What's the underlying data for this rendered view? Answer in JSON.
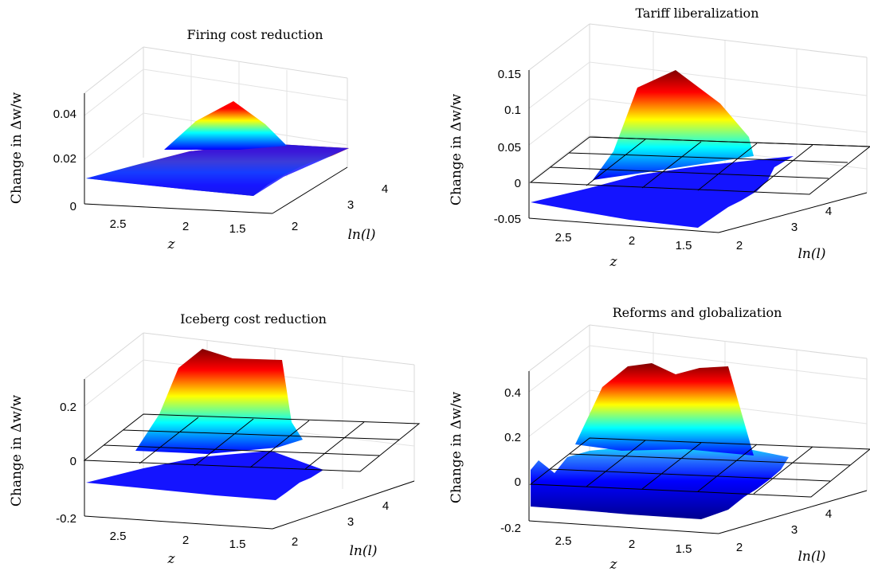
{
  "colormap": [
    "#00008f",
    "#0000ff",
    "#00ffff",
    "#ffff00",
    "#ff0000",
    "#800000"
  ],
  "chart_data": [
    {
      "type": "surface",
      "title": "Firing cost reduction",
      "zlabel": "Change in Δw/w",
      "xlabel": "z",
      "ylabel": "ln(l)",
      "xlim": [
        1.3,
        2.8
      ],
      "ylim": [
        2,
        4.6
      ],
      "zlim": [
        0,
        0.05
      ],
      "xticks": [
        "2.5",
        "2",
        "1.5"
      ],
      "yticks": [
        "2",
        "3",
        "4"
      ],
      "zticks": [
        "0",
        "0.02",
        "0.04"
      ],
      "zero_plane": false,
      "surface_peak": 0.045,
      "surface_floor": 0.008
    },
    {
      "type": "surface",
      "title": "Tariff liberalization",
      "zlabel": "Change in Δw/w",
      "xlabel": "z",
      "ylabel": "ln(l)",
      "xlim": [
        1.3,
        2.8
      ],
      "ylim": [
        2,
        4.6
      ],
      "zlim": [
        -0.05,
        0.15
      ],
      "xticks": [
        "2.5",
        "2",
        "1.5"
      ],
      "yticks": [
        "2",
        "3",
        "4"
      ],
      "zticks": [
        "-0.05",
        "0",
        "0.05",
        "0.1",
        "0.15"
      ],
      "zero_plane": true,
      "surface_peak": 0.155,
      "surface_floor": -0.03
    },
    {
      "type": "surface",
      "title": "Iceberg cost reduction",
      "zlabel": "Change in Δw/w",
      "xlabel": "z",
      "ylabel": "ln(l)",
      "xlim": [
        1.3,
        2.8
      ],
      "ylim": [
        2,
        4.6
      ],
      "zlim": [
        -0.2,
        0.3
      ],
      "xticks": [
        "2.5",
        "2",
        "1.5"
      ],
      "yticks": [
        "2",
        "3",
        "4"
      ],
      "zticks": [
        "-0.2",
        "0",
        "0.2"
      ],
      "zero_plane": true,
      "surface_peak": 0.3,
      "surface_floor": -0.09
    },
    {
      "type": "surface",
      "title": "Reforms and globalization",
      "zlabel": "Change in Δw/w",
      "xlabel": "z",
      "ylabel": "ln(l)",
      "xlim": [
        1.3,
        2.8
      ],
      "ylim": [
        2,
        4.6
      ],
      "zlim": [
        -0.2,
        0.5
      ],
      "xticks": [
        "2.5",
        "2",
        "1.5"
      ],
      "yticks": [
        "2",
        "3",
        "4"
      ],
      "zticks": [
        "-0.2",
        "0",
        "0.2",
        "0.4"
      ],
      "zero_plane": true,
      "surface_peak": 0.5,
      "surface_floor": -0.13
    }
  ]
}
